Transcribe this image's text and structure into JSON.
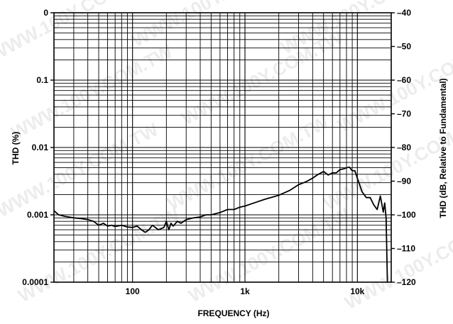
{
  "chart_data": {
    "type": "line",
    "title": "",
    "xlabel": "FREQUENCY (Hz)",
    "ylabel": "THD (%)",
    "ylabel_right": "THD (dB, Relative to Fundamental)",
    "x_scale": "log",
    "y_scale": "log",
    "xlim": [
      20,
      20000
    ],
    "ylim": [
      0.0001,
      1
    ],
    "ylim_right": [
      -120,
      -40
    ],
    "grid": true,
    "x_tick_labels": [
      {
        "value": 100,
        "label": "100"
      },
      {
        "value": 1000,
        "label": "1k"
      },
      {
        "value": 10000,
        "label": "10k"
      }
    ],
    "y_tick_labels": [
      {
        "value": 1,
        "label": "0"
      },
      {
        "value": 0.1,
        "label": "0.1"
      },
      {
        "value": 0.01,
        "label": "0.01"
      },
      {
        "value": 0.001,
        "label": "0.001"
      },
      {
        "value": 0.0001,
        "label": "0.0001"
      }
    ],
    "y_right_tick_labels": [
      {
        "value": -40,
        "label": "–40"
      },
      {
        "value": -50,
        "label": "–50"
      },
      {
        "value": -60,
        "label": "–60"
      },
      {
        "value": -70,
        "label": "–70"
      },
      {
        "value": -80,
        "label": "–80"
      },
      {
        "value": -90,
        "label": "–90"
      },
      {
        "value": -100,
        "label": "–100"
      },
      {
        "value": -110,
        "label": "–110"
      },
      {
        "value": -120,
        "label": "–120"
      }
    ],
    "series": [
      {
        "color": "#000000",
        "x": [
          20,
          22,
          25,
          30,
          35,
          40,
          45,
          50,
          55,
          60,
          65,
          70,
          80,
          90,
          100,
          110,
          120,
          130,
          140,
          150,
          170,
          190,
          200,
          210,
          220,
          230,
          250,
          270,
          300,
          350,
          400,
          450,
          500,
          600,
          700,
          800,
          900,
          1000,
          1200,
          1500,
          2000,
          2500,
          3000,
          3500,
          4000,
          4500,
          5000,
          5500,
          6000,
          6500,
          7000,
          7500,
          8000,
          8500,
          9000,
          9500,
          10000,
          11000,
          12000,
          13000,
          14000,
          15000,
          16000,
          17000,
          17500,
          18000,
          18500
        ],
        "y": [
          0.00115,
          0.001,
          0.00095,
          0.0009,
          0.00088,
          0.00085,
          0.0008,
          0.0007,
          0.00075,
          0.00068,
          0.0007,
          0.00067,
          0.0007,
          0.00066,
          0.00065,
          0.00068,
          0.0006,
          0.00055,
          0.0006,
          0.0007,
          0.0006,
          0.00065,
          0.0008,
          0.0006,
          0.00075,
          0.00068,
          0.0008,
          0.00075,
          0.00085,
          0.0009,
          0.00093,
          0.001,
          0.001,
          0.00108,
          0.0012,
          0.0012,
          0.0013,
          0.00135,
          0.0015,
          0.0017,
          0.00195,
          0.0023,
          0.0028,
          0.0031,
          0.0035,
          0.004,
          0.0044,
          0.0039,
          0.0042,
          0.0042,
          0.0047,
          0.0048,
          0.005,
          0.0051,
          0.0045,
          0.0045,
          0.0035,
          0.0022,
          0.0018,
          0.0018,
          0.0014,
          0.0012,
          0.0019,
          0.0011,
          0.0015,
          0.0009,
          0.0001
        ]
      }
    ]
  },
  "watermark": {
    "text": "WWW.100Y.COM.TW"
  }
}
